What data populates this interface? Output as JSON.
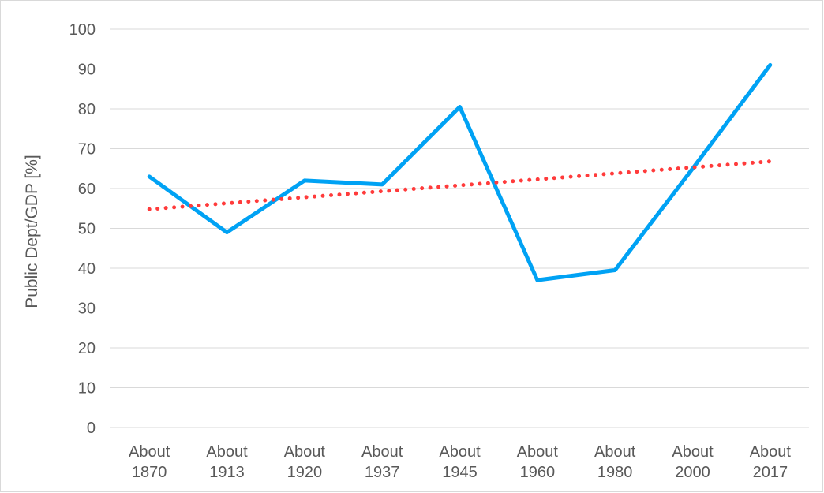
{
  "chart_data": {
    "type": "line",
    "title": "",
    "xlabel": "",
    "ylabel": "Public Dept/GDP [%]",
    "categories": [
      [
        "About",
        "1870"
      ],
      [
        "About",
        "1913"
      ],
      [
        "About",
        "1920"
      ],
      [
        "About",
        "1937"
      ],
      [
        "About",
        "1945"
      ],
      [
        "About",
        "1960"
      ],
      [
        "About",
        "1980"
      ],
      [
        "About",
        "2000"
      ],
      [
        "About",
        "2017"
      ]
    ],
    "series": [
      {
        "values": [
          63,
          49,
          62,
          61,
          80.5,
          37,
          39.5,
          65,
          91
        ],
        "color": "#00a2f4",
        "style": "solid"
      },
      {
        "trendline": "linear",
        "values": [
          54.8,
          56.3,
          57.8,
          59.3,
          60.8,
          62.3,
          63.8,
          65.3,
          66.8
        ],
        "color": "#ff3b3b",
        "style": "dotted"
      }
    ],
    "yticks": [
      0,
      10,
      20,
      30,
      40,
      50,
      60,
      70,
      80,
      90,
      100
    ],
    "ylim": [
      0,
      100
    ],
    "grid": "horizontal",
    "legend": "none",
    "colors": {
      "grid": "#d9d9d9",
      "text": "#595959"
    }
  }
}
